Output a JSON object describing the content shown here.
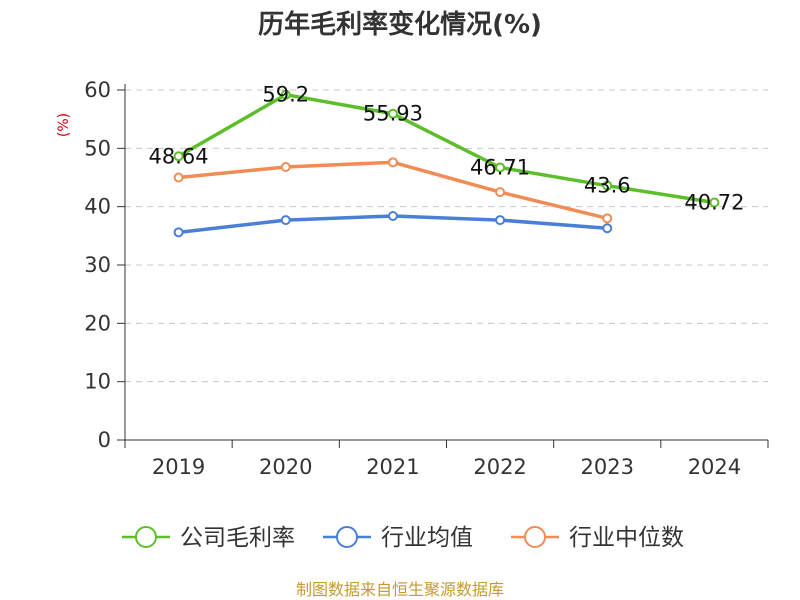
{
  "chart_data": {
    "type": "line",
    "title": "历年毛利率变化情况(%)",
    "ylabel": "(%)",
    "xlabel": "",
    "categories": [
      "2019",
      "2020",
      "2021",
      "2022",
      "2023",
      "2024"
    ],
    "ylim": [
      0,
      60
    ],
    "yticks": [
      0,
      10,
      20,
      30,
      40,
      50,
      60
    ],
    "grid": true,
    "legend_position": "bottom",
    "series": [
      {
        "name": "公司毛利率",
        "color": "#5cbf2a",
        "values": [
          48.64,
          59.2,
          55.93,
          46.71,
          43.6,
          40.72
        ],
        "labels": [
          "48.64",
          "59.2",
          "55.93",
          "46.71",
          "43.6",
          "40.72"
        ]
      },
      {
        "name": "行业均值",
        "color": "#4a7fd6",
        "values": [
          35.6,
          37.7,
          38.4,
          37.7,
          36.3,
          null
        ]
      },
      {
        "name": "行业中位数",
        "color": "#f28c55",
        "values": [
          45.0,
          46.8,
          47.6,
          42.5,
          38.0,
          null
        ]
      }
    ]
  },
  "footer": {
    "source": "制图数据来自恒生聚源数据库"
  }
}
